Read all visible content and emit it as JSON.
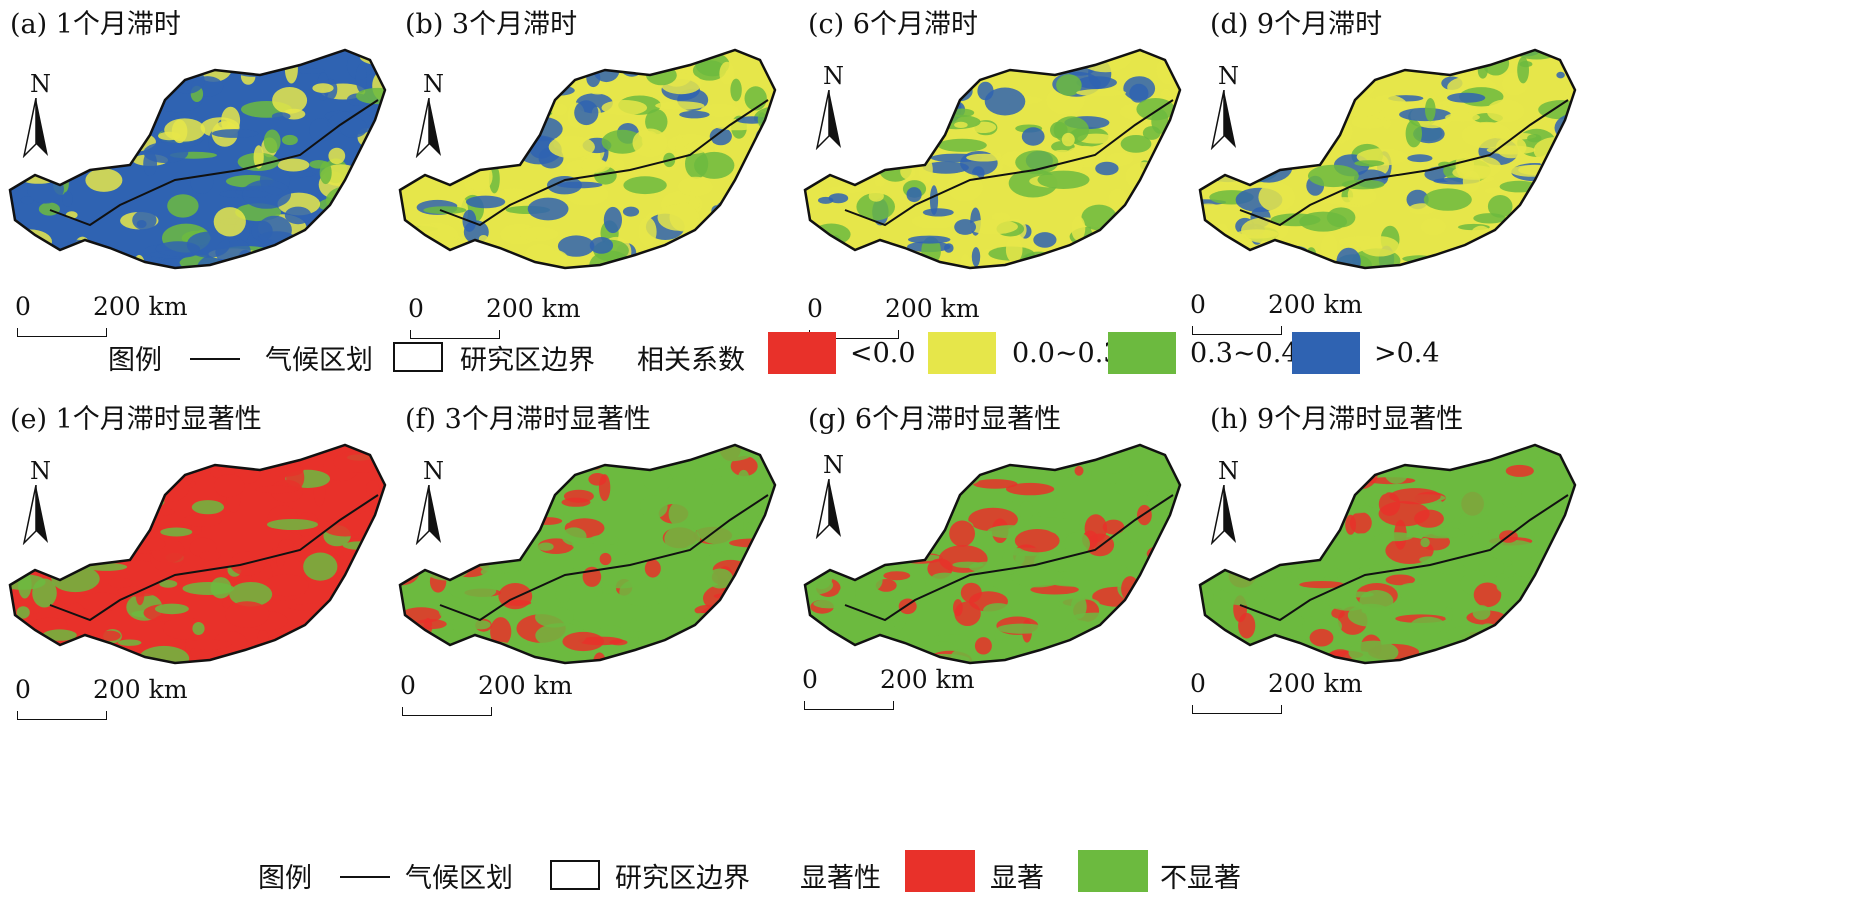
{
  "panels_top": [
    {
      "title": "(a) 1个月滞时",
      "palette": "corr_a"
    },
    {
      "title": "(b) 3个月滞时",
      "palette": "corr_b"
    },
    {
      "title": "(c) 6个月滞时",
      "palette": "corr_c"
    },
    {
      "title": "(d) 9个月滞时",
      "palette": "corr_d"
    }
  ],
  "panels_bottom": [
    {
      "title": "(e) 1个月滞时显著性",
      "palette": "sig_e"
    },
    {
      "title": "(f) 3个月滞时显著性",
      "palette": "sig_f"
    },
    {
      "title": "(g) 6个月滞时显著性",
      "palette": "sig_g"
    },
    {
      "title": "(h) 9个月滞时显著性",
      "palette": "sig_h"
    }
  ],
  "north_label": "N",
  "scale": {
    "zero": "0",
    "distance": "200 km"
  },
  "legend_top": {
    "title": "图例",
    "climate_line": "气候区划",
    "boundary": "研究区边界",
    "corr_title": "相关系数",
    "items": [
      {
        "label": "<0.0",
        "color": "#e8312a"
      },
      {
        "label": "0.0~0.3",
        "color": "#e6e64a"
      },
      {
        "label": "0.3~0.4",
        "color": "#6cba3f"
      },
      {
        "label": ">0.4",
        "color": "#2f63b2"
      }
    ]
  },
  "legend_bottom": {
    "title": "图例",
    "climate_line": "气候区划",
    "boundary": "研究区边界",
    "sig_title": "显著性",
    "items": [
      {
        "label": "显著",
        "color": "#e8312a"
      },
      {
        "label": "不显著",
        "color": "#6cba3f"
      }
    ]
  }
}
